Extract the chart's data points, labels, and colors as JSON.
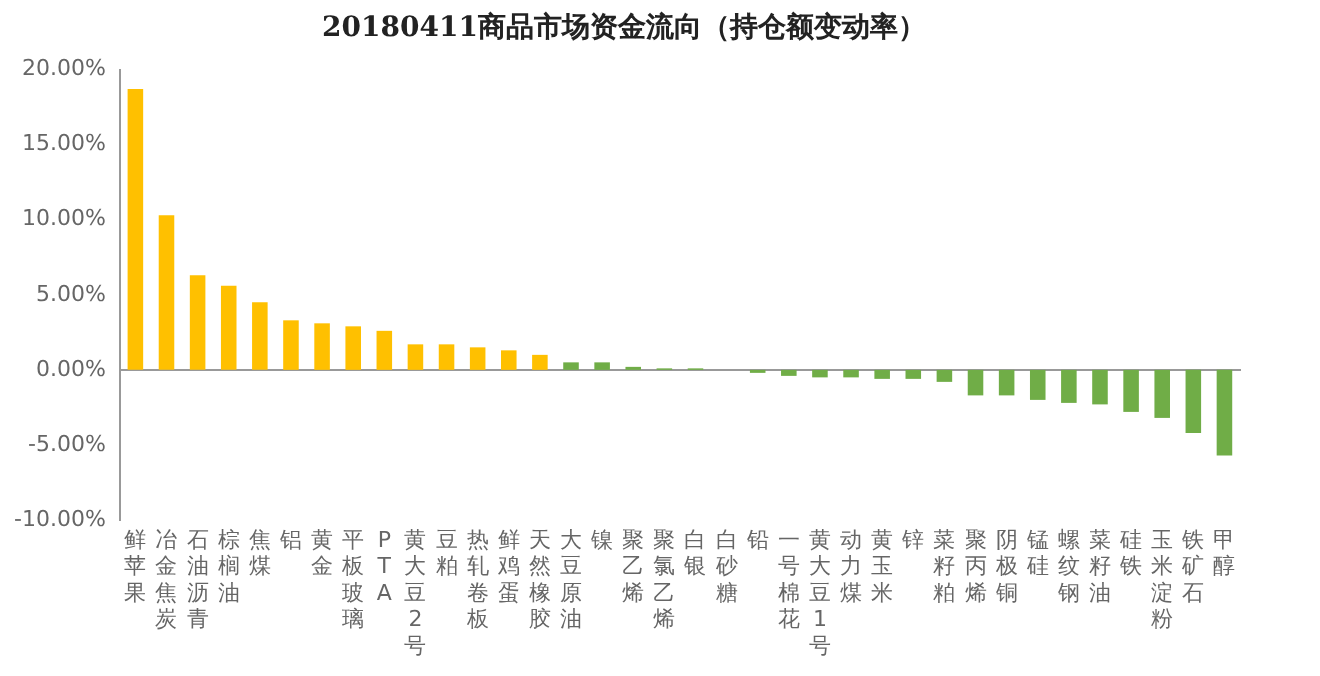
{
  "chart_data": {
    "type": "bar",
    "title": "20180411商品市场资金流向（持仓额变动率）",
    "categories": [
      "鲜苹果",
      "冶金焦炭",
      "石油沥青",
      "棕榈油",
      "焦煤",
      "铝",
      "黄金",
      "平板玻璃",
      "PTA",
      "黄大豆2号",
      "豆粕",
      "热轧卷板",
      "鲜鸡蛋",
      "天然橡胶",
      "大豆原油",
      "镍",
      "聚乙烯",
      "聚氯乙烯",
      "白银",
      "白砂糖",
      "铅",
      "一号棉花",
      "黄大豆1号",
      "动力煤",
      "黄玉米",
      "锌",
      "菜籽粕",
      "聚丙烯",
      "阴极铜",
      "锰硅",
      "螺纹钢",
      "菜籽油",
      "硅铁",
      "玉米淀粉",
      "铁矿石",
      "甲醇"
    ],
    "values": [
      18.7,
      10.3,
      6.3,
      5.6,
      4.5,
      3.3,
      3.1,
      2.9,
      2.6,
      1.7,
      1.7,
      1.5,
      1.3,
      1.0,
      0.5,
      0.5,
      0.2,
      0.1,
      0.1,
      0.0,
      -0.2,
      -0.4,
      -0.5,
      -0.5,
      -0.6,
      -0.6,
      -0.8,
      -1.7,
      -1.7,
      -2.0,
      -2.2,
      -2.3,
      -2.8,
      -3.2,
      -4.2,
      -5.7
    ],
    "colors": [
      "#ffc000",
      "#ffc000",
      "#ffc000",
      "#ffc000",
      "#ffc000",
      "#ffc000",
      "#ffc000",
      "#ffc000",
      "#ffc000",
      "#ffc000",
      "#ffc000",
      "#ffc000",
      "#ffc000",
      "#ffc000",
      "#70ad47",
      "#70ad47",
      "#70ad47",
      "#70ad47",
      "#70ad47",
      "#70ad47",
      "#70ad47",
      "#70ad47",
      "#70ad47",
      "#70ad47",
      "#70ad47",
      "#70ad47",
      "#70ad47",
      "#70ad47",
      "#70ad47",
      "#70ad47",
      "#70ad47",
      "#70ad47",
      "#70ad47",
      "#70ad47",
      "#70ad47",
      "#70ad47"
    ],
    "ylim": [
      -10,
      20
    ],
    "yticks": [
      {
        "value": -10,
        "label": "-10.00%"
      },
      {
        "value": -5,
        "label": "-5.00%"
      },
      {
        "value": 0,
        "label": "0.00%"
      },
      {
        "value": 5,
        "label": "5.00%"
      },
      {
        "value": 10,
        "label": "10.00%"
      },
      {
        "value": 15,
        "label": "15.00%"
      },
      {
        "value": 20,
        "label": "20.00%"
      }
    ],
    "legend": false
  }
}
